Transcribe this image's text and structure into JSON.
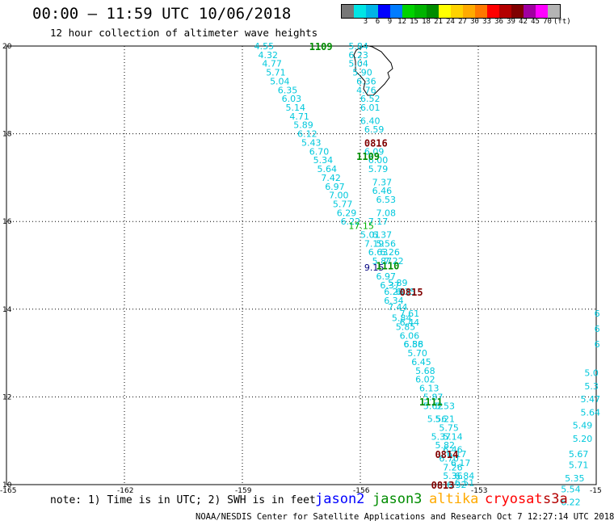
{
  "header": {
    "title": "00:00 – 11:59 UTC 10/06/2018",
    "subtitle": "12 hour collection of altimeter wave heights"
  },
  "legend": {
    "colors": [
      "#777777",
      "#00e5e5",
      "#00b4e6",
      "#0000ff",
      "#007cff",
      "#00d200",
      "#00b400",
      "#008c00",
      "#ffff00",
      "#ffd200",
      "#ffaa00",
      "#ff7800",
      "#ff0000",
      "#b40000",
      "#800000",
      "#a000a0",
      "#ff00ff",
      "#b4b4b4",
      "#000000"
    ],
    "labels": [
      "",
      "3",
      "6",
      "9",
      "12",
      "15",
      "18",
      "21",
      "24",
      "27",
      "30",
      "33",
      "36",
      "39",
      "42",
      "45",
      "70",
      "(ft)"
    ]
  },
  "axes": {
    "x_ticks": [
      "-165",
      "-162",
      "-159",
      "-156",
      "-153",
      "-15"
    ],
    "y_ticks": [
      "20",
      "18",
      "16",
      "14",
      "12",
      "10"
    ]
  },
  "chart_data": {
    "type": "scatter",
    "xlabel": "",
    "ylabel": "",
    "xlim": [
      -165,
      -150
    ],
    "ylim": [
      10,
      20
    ],
    "grid": true,
    "pass_labels": [
      {
        "text": "1109",
        "lon": -157.3,
        "lat": 20.0,
        "color": "#008c00"
      },
      {
        "text": "1109",
        "lon": -156.1,
        "lat": 17.5,
        "color": "#008c00"
      },
      {
        "text": "0816",
        "lon": -155.9,
        "lat": 17.8,
        "color": "#800000"
      },
      {
        "text": "1110",
        "lon": -155.6,
        "lat": 15.0,
        "color": "#008c00"
      },
      {
        "text": "0815",
        "lon": -155.0,
        "lat": 14.4,
        "color": "#800000"
      },
      {
        "text": "1111",
        "lon": -154.5,
        "lat": 11.9,
        "color": "#008c00"
      },
      {
        "text": "0814",
        "lon": -154.1,
        "lat": 10.7,
        "color": "#800000"
      },
      {
        "text": "0813",
        "lon": -154.2,
        "lat": 10.0,
        "color": "#800000"
      }
    ],
    "swh_points": [
      {
        "v": "4.55",
        "lon": -158.7,
        "lat": 20.0
      },
      {
        "v": "4.32",
        "lon": -158.6,
        "lat": 19.8
      },
      {
        "v": "4.77",
        "lon": -158.5,
        "lat": 19.6
      },
      {
        "v": "5.71",
        "lon": -158.4,
        "lat": 19.4
      },
      {
        "v": "5.04",
        "lon": -158.3,
        "lat": 19.2
      },
      {
        "v": "6.35",
        "lon": -158.1,
        "lat": 19.0
      },
      {
        "v": "6.03",
        "lon": -158.0,
        "lat": 18.8
      },
      {
        "v": "5.14",
        "lon": -157.9,
        "lat": 18.6
      },
      {
        "v": "4.71",
        "lon": -157.8,
        "lat": 18.4
      },
      {
        "v": "5.89",
        "lon": -157.7,
        "lat": 18.2
      },
      {
        "v": "6.12",
        "lon": -157.6,
        "lat": 18.0
      },
      {
        "v": "5.43",
        "lon": -157.5,
        "lat": 17.8
      },
      {
        "v": "6.70",
        "lon": -157.3,
        "lat": 17.6
      },
      {
        "v": "5.34",
        "lon": -157.2,
        "lat": 17.4
      },
      {
        "v": "5.64",
        "lon": -157.1,
        "lat": 17.2
      },
      {
        "v": "7.42",
        "lon": -157.0,
        "lat": 17.0
      },
      {
        "v": "6.97",
        "lon": -156.9,
        "lat": 16.8
      },
      {
        "v": "7.00",
        "lon": -156.8,
        "lat": 16.6
      },
      {
        "v": "5.77",
        "lon": -156.7,
        "lat": 16.4
      },
      {
        "v": "6.29",
        "lon": -156.6,
        "lat": 16.2
      },
      {
        "v": "6.22",
        "lon": -156.5,
        "lat": 16.0
      },
      {
        "v": "5.84",
        "lon": -156.3,
        "lat": 20.0
      },
      {
        "v": "6.23",
        "lon": -156.3,
        "lat": 19.8
      },
      {
        "v": "5.04",
        "lon": -156.3,
        "lat": 19.6
      },
      {
        "v": "5.90",
        "lon": -156.2,
        "lat": 19.4
      },
      {
        "v": "6.36",
        "lon": -156.1,
        "lat": 19.2
      },
      {
        "v": "4.76",
        "lon": -156.1,
        "lat": 19.0
      },
      {
        "v": "6.52",
        "lon": -156.0,
        "lat": 18.8
      },
      {
        "v": "6.01",
        "lon": -156.0,
        "lat": 18.6
      },
      {
        "v": "6.40",
        "lon": -156.0,
        "lat": 18.3
      },
      {
        "v": "6.59",
        "lon": -155.9,
        "lat": 18.1
      },
      {
        "v": "6.09",
        "lon": -155.9,
        "lat": 17.6
      },
      {
        "v": "6.00",
        "lon": -155.8,
        "lat": 17.4
      },
      {
        "v": "5.79",
        "lon": -155.8,
        "lat": 17.2
      },
      {
        "v": "7.37",
        "lon": -155.7,
        "lat": 16.9
      },
      {
        "v": "6.46",
        "lon": -155.7,
        "lat": 16.7
      },
      {
        "v": "6.53",
        "lon": -155.6,
        "lat": 16.5
      },
      {
        "v": "7.08",
        "lon": -155.6,
        "lat": 16.2
      },
      {
        "v": "7.17",
        "lon": -155.8,
        "lat": 16.0
      },
      {
        "v": "17.15",
        "lon": -156.3,
        "lat": 15.9,
        "c": "#00b400"
      },
      {
        "v": "5.01",
        "lon": -156.0,
        "lat": 15.7
      },
      {
        "v": "6.37",
        "lon": -155.7,
        "lat": 15.7
      },
      {
        "v": "7.19",
        "lon": -155.9,
        "lat": 15.5
      },
      {
        "v": "5.56",
        "lon": -155.6,
        "lat": 15.5
      },
      {
        "v": "6.63",
        "lon": -155.8,
        "lat": 15.3
      },
      {
        "v": "6.26",
        "lon": -155.5,
        "lat": 15.3
      },
      {
        "v": "5.87",
        "lon": -155.7,
        "lat": 15.1
      },
      {
        "v": "7.22",
        "lon": -155.4,
        "lat": 15.1
      },
      {
        "v": "9.15",
        "lon": -155.9,
        "lat": 14.95,
        "c": "#000080"
      },
      {
        "v": "6.97",
        "lon": -155.6,
        "lat": 14.75
      },
      {
        "v": "5.89",
        "lon": -155.3,
        "lat": 14.6
      },
      {
        "v": "6.37",
        "lon": -155.5,
        "lat": 14.55
      },
      {
        "v": "6.28",
        "lon": -155.4,
        "lat": 14.4
      },
      {
        "v": "6.35",
        "lon": -155.1,
        "lat": 14.4
      },
      {
        "v": "6.34",
        "lon": -155.4,
        "lat": 14.2
      },
      {
        "v": "7.44",
        "lon": -155.3,
        "lat": 14.05
      },
      {
        "v": "7.61",
        "lon": -155.0,
        "lat": 13.9
      },
      {
        "v": "5.84",
        "lon": -155.2,
        "lat": 13.8
      },
      {
        "v": "6.44",
        "lon": -155.0,
        "lat": 13.7
      },
      {
        "v": "5.85",
        "lon": -155.1,
        "lat": 13.6
      },
      {
        "v": "6.06",
        "lon": -155.0,
        "lat": 13.4
      },
      {
        "v": "6.58",
        "lon": -154.9,
        "lat": 13.2
      },
      {
        "v": "6.86",
        "lon": -154.9,
        "lat": 13.2
      },
      {
        "v": "5.70",
        "lon": -154.8,
        "lat": 13.0
      },
      {
        "v": "6.45",
        "lon": -154.7,
        "lat": 12.8
      },
      {
        "v": "5.68",
        "lon": -154.6,
        "lat": 12.6
      },
      {
        "v": "6.02",
        "lon": -154.6,
        "lat": 12.4
      },
      {
        "v": "6.13",
        "lon": -154.5,
        "lat": 12.2
      },
      {
        "v": "5.87",
        "lon": -154.4,
        "lat": 12.0
      },
      {
        "v": "5.62",
        "lon": -154.4,
        "lat": 11.8
      },
      {
        "v": "5.53",
        "lon": -154.1,
        "lat": 11.8
      },
      {
        "v": "5.56",
        "lon": -154.3,
        "lat": 11.5
      },
      {
        "v": "5.21",
        "lon": -154.1,
        "lat": 11.5
      },
      {
        "v": "5.75",
        "lon": -154.0,
        "lat": 11.3
      },
      {
        "v": "5.37",
        "lon": -154.2,
        "lat": 11.1
      },
      {
        "v": "5.14",
        "lon": -153.9,
        "lat": 11.1
      },
      {
        "v": "5.82",
        "lon": -154.1,
        "lat": 10.9
      },
      {
        "v": "6.46",
        "lon": -153.9,
        "lat": 10.8
      },
      {
        "v": "6.17",
        "lon": -153.8,
        "lat": 10.7
      },
      {
        "v": "6.70",
        "lon": -154.0,
        "lat": 10.6
      },
      {
        "v": "7.26",
        "lon": -153.9,
        "lat": 10.4
      },
      {
        "v": "6.17",
        "lon": -153.7,
        "lat": 10.5
      },
      {
        "v": "5.36",
        "lon": -153.9,
        "lat": 10.2
      },
      {
        "v": "6.84",
        "lon": -153.6,
        "lat": 10.2
      },
      {
        "v": "6.32",
        "lon": -153.8,
        "lat": 10.0
      },
      {
        "v": "6.51",
        "lon": -153.6,
        "lat": 10.05
      },
      {
        "v": "6",
        "lon": -150.05,
        "lat": 13.9
      },
      {
        "v": "6",
        "lon": -150.05,
        "lat": 13.55
      },
      {
        "v": "6",
        "lon": -150.05,
        "lat": 13.2
      },
      {
        "v": "5.0",
        "lon": -150.3,
        "lat": 12.55
      },
      {
        "v": "5.3",
        "lon": -150.3,
        "lat": 12.25
      },
      {
        "v": "5.47",
        "lon": -150.4,
        "lat": 11.95
      },
      {
        "v": "5.64",
        "lon": -150.4,
        "lat": 11.65
      },
      {
        "v": "5.49",
        "lon": -150.6,
        "lat": 11.35
      },
      {
        "v": "5.20",
        "lon": -150.6,
        "lat": 11.05
      },
      {
        "v": "5.67",
        "lon": -150.7,
        "lat": 10.7
      },
      {
        "v": "5.71",
        "lon": -150.7,
        "lat": 10.45
      },
      {
        "v": "5.35",
        "lon": -150.8,
        "lat": 10.15
      },
      {
        "v": "5.54",
        "lon": -150.9,
        "lat": 9.9
      },
      {
        "v": "6.22",
        "lon": -150.9,
        "lat": 9.6
      }
    ]
  },
  "note": "note: 1) Time is in UTC; 2) SWH is in feet",
  "satellites": [
    {
      "name": "jason2",
      "color": "#0000ff"
    },
    {
      "name": "jason3",
      "color": "#008c00"
    },
    {
      "name": "altika",
      "color": "#ffaa00"
    },
    {
      "name": "cryosat",
      "color": "#ff0000"
    },
    {
      "name": "s3a",
      "color": "#b40000"
    }
  ],
  "footer": "NOAA/NESDIS Center for Satellite Applications and Research   Oct  7 12:27:14 UTC 2018"
}
